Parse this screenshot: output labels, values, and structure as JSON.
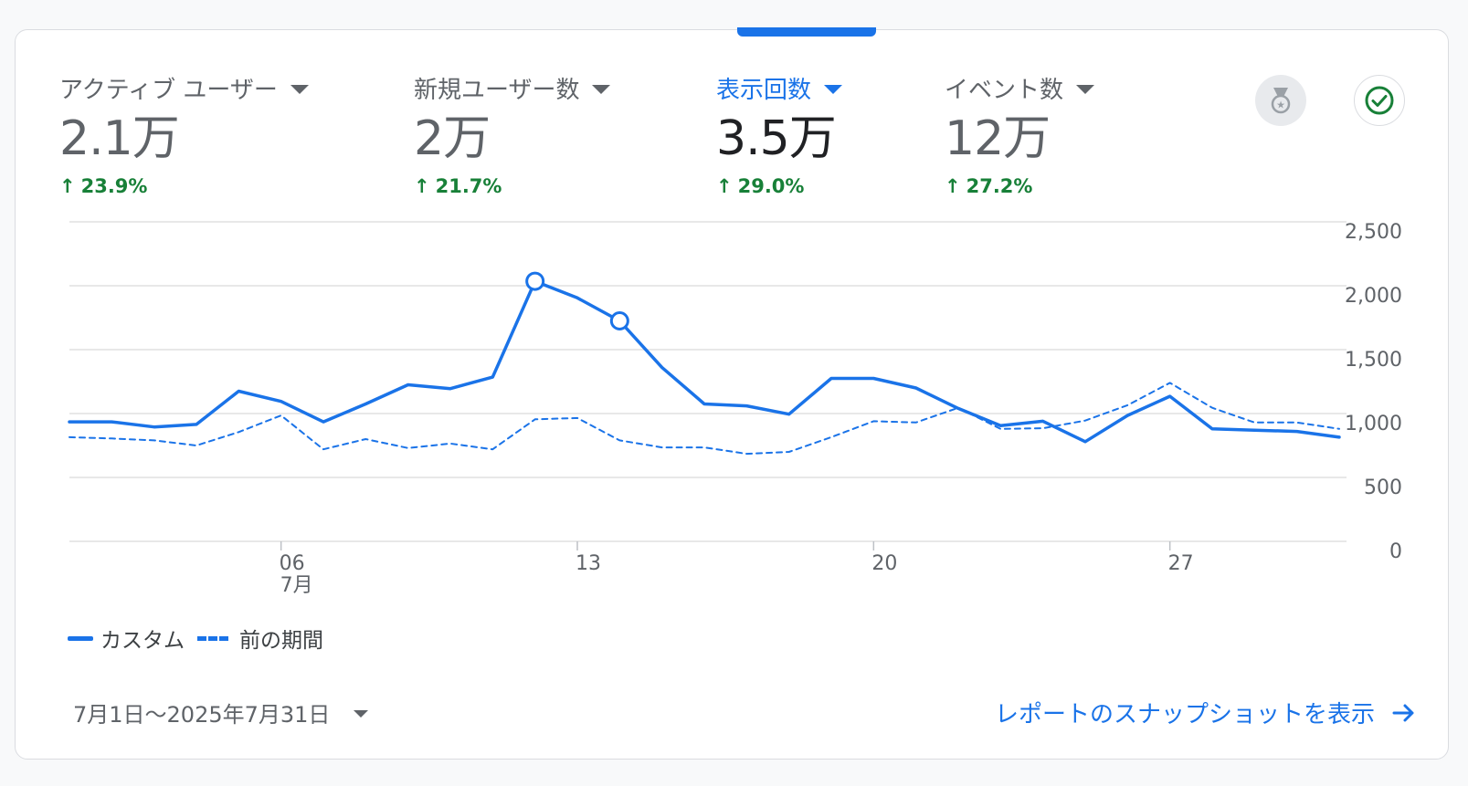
{
  "metrics": [
    {
      "label": "アクティブ ユーザー",
      "value": "2.1万",
      "change": "23.9%"
    },
    {
      "label": "新規ユーザー数",
      "value": "2万",
      "change": "21.7%"
    },
    {
      "label": "表示回数",
      "value": "3.5万",
      "change": "29.0%"
    },
    {
      "label": "イベント数",
      "value": "12万",
      "change": "27.2%"
    }
  ],
  "colors": {
    "accent": "#1a73e8",
    "positive": "#188038",
    "grid": "#e0e0e0"
  },
  "icons": {
    "badge": "medal-icon",
    "check": "check-circle-icon",
    "link_arrow": "arrow-right-icon"
  },
  "chart_data": {
    "type": "line",
    "x": [
      "1",
      "2",
      "3",
      "4",
      "5",
      "6",
      "7",
      "8",
      "9",
      "10",
      "11",
      "12",
      "13",
      "14",
      "15",
      "16",
      "17",
      "18",
      "19",
      "20",
      "21",
      "22",
      "23",
      "24",
      "25",
      "26",
      "27",
      "28",
      "29",
      "30",
      "31"
    ],
    "x_tick_labels": [
      {
        "at": "6",
        "label": "06",
        "sublabel": "7月"
      },
      {
        "at": "13",
        "label": "13"
      },
      {
        "at": "20",
        "label": "20"
      },
      {
        "at": "27",
        "label": "27"
      }
    ],
    "y_ticks": [
      "2,500",
      "2,000",
      "1,500",
      "1,000",
      "500",
      "0"
    ],
    "ylim": [
      0,
      2500
    ],
    "grid": true,
    "legend_position": "bottom-left",
    "series": [
      {
        "name": "カスタム",
        "style": "solid",
        "values": [
          935,
          935,
          895,
          915,
          1175,
          1095,
          935,
          1075,
          1225,
          1195,
          1285,
          2035,
          1905,
          1725,
          1360,
          1075,
          1060,
          995,
          1275,
          1275,
          1200,
          1040,
          905,
          940,
          780,
          985,
          1135,
          880,
          870,
          860,
          815
        ]
      },
      {
        "name": "前の期間",
        "style": "dashed",
        "values": [
          815,
          805,
          790,
          750,
          855,
          985,
          720,
          800,
          730,
          765,
          720,
          955,
          965,
          790,
          735,
          735,
          685,
          700,
          815,
          940,
          930,
          1045,
          880,
          885,
          945,
          1065,
          1240,
          1045,
          930,
          930,
          880
        ]
      }
    ],
    "highlighted_points": [
      {
        "series": 0,
        "x": "12"
      },
      {
        "series": 0,
        "x": "14"
      }
    ]
  },
  "legend": {
    "current": "カスタム",
    "previous": "前の期間"
  },
  "footer": {
    "date_range": "7月1日～2025年7月31日",
    "snapshot_link": "レポートのスナップショットを表示"
  }
}
